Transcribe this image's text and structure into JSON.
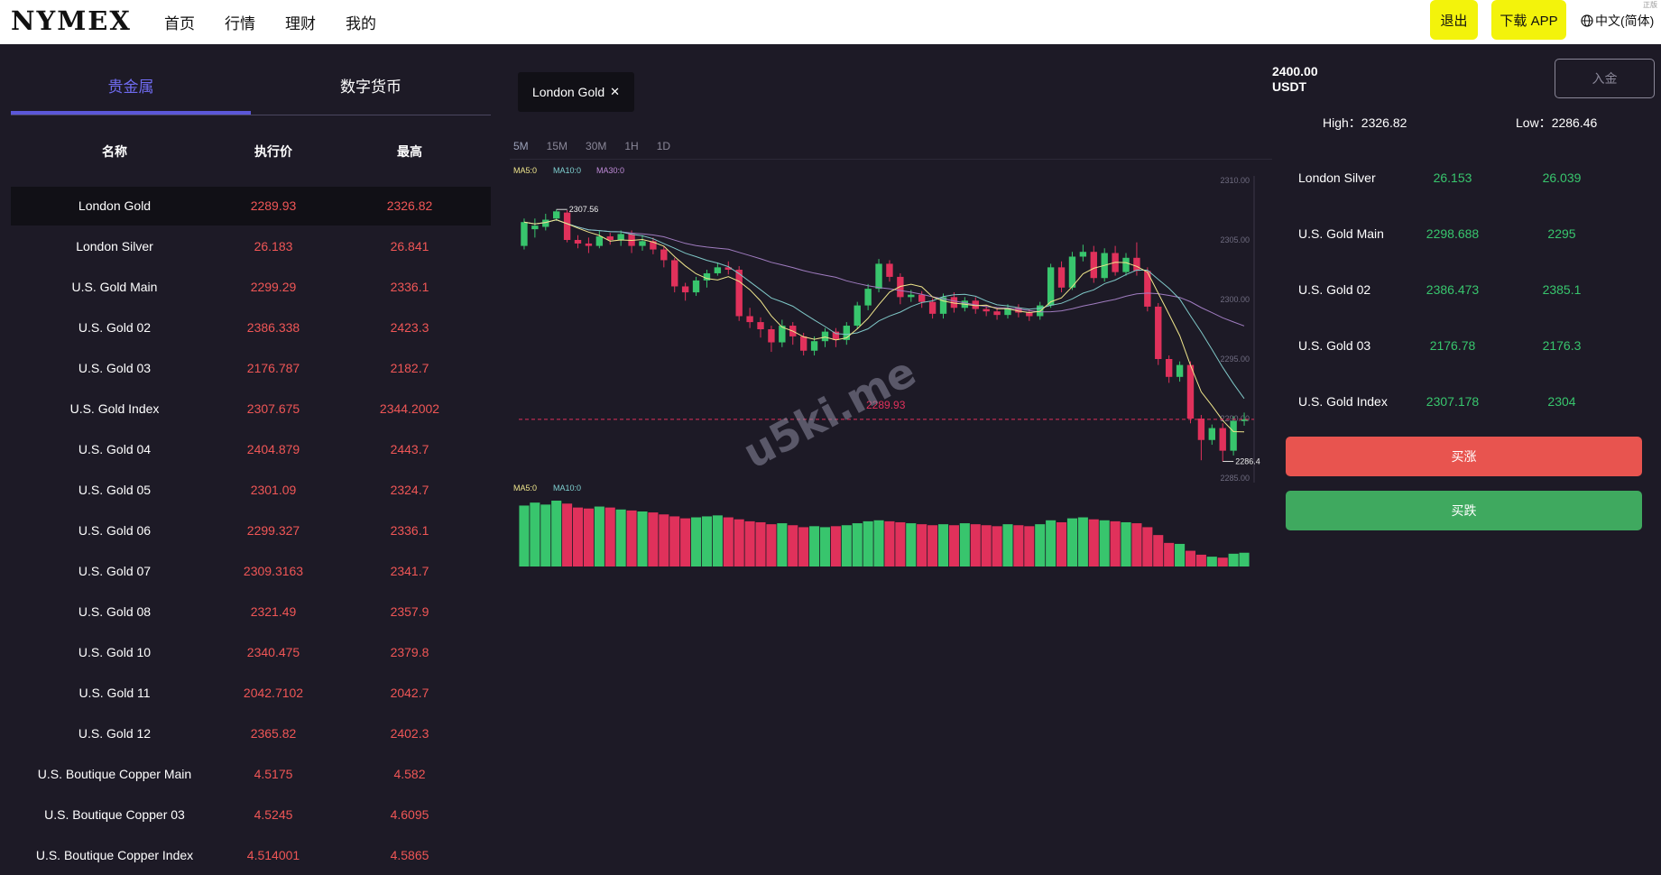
{
  "header": {
    "logo": "NYMEX",
    "nav": [
      "首页",
      "行情",
      "理财",
      "我的"
    ],
    "logout": "退出",
    "download": "下载 APP",
    "language": "中文(简体)",
    "tag": "正版"
  },
  "left": {
    "tabs": [
      "贵金属",
      "数字货币"
    ],
    "columns": [
      "名称",
      "执行价",
      "最高"
    ],
    "rows": [
      {
        "name": "London Gold",
        "price": "2289.93",
        "high": "2326.82"
      },
      {
        "name": "London Silver",
        "price": "26.183",
        "high": "26.841"
      },
      {
        "name": "U.S. Gold Main",
        "price": "2299.29",
        "high": "2336.1"
      },
      {
        "name": "U.S. Gold 02",
        "price": "2386.338",
        "high": "2423.3"
      },
      {
        "name": "U.S. Gold 03",
        "price": "2176.787",
        "high": "2182.7"
      },
      {
        "name": "U.S. Gold Index",
        "price": "2307.675",
        "high": "2344.2002"
      },
      {
        "name": "U.S. Gold 04",
        "price": "2404.879",
        "high": "2443.7"
      },
      {
        "name": "U.S. Gold 05",
        "price": "2301.09",
        "high": "2324.7"
      },
      {
        "name": "U.S. Gold 06",
        "price": "2299.327",
        "high": "2336.1"
      },
      {
        "name": "U.S. Gold 07",
        "price": "2309.3163",
        "high": "2341.7"
      },
      {
        "name": "U.S. Gold 08",
        "price": "2321.49",
        "high": "2357.9"
      },
      {
        "name": "U.S. Gold 10",
        "price": "2340.475",
        "high": "2379.8"
      },
      {
        "name": "U.S. Gold 11",
        "price": "2042.7102",
        "high": "2042.7"
      },
      {
        "name": "U.S. Gold 12",
        "price": "2365.82",
        "high": "2402.3"
      },
      {
        "name": "U.S. Boutique Copper Main",
        "price": "4.5175",
        "high": "4.582"
      },
      {
        "name": "U.S. Boutique Copper 03",
        "price": "4.5245",
        "high": "4.6095"
      },
      {
        "name": "U.S. Boutique Copper Index",
        "price": "4.514001",
        "high": "4.5865"
      }
    ]
  },
  "middle": {
    "symbol_tab": "London Gold",
    "close_glyph": "✕",
    "periods": [
      "5M",
      "15M",
      "30M",
      "1H",
      "1D"
    ],
    "ma_labels": [
      "MA5:0",
      "MA10:0",
      "MA30:0"
    ],
    "vol_ma_labels": [
      "MA5:0",
      "MA10:0"
    ],
    "y_ticks": [
      "2310.00",
      "2305.00",
      "2300.00",
      "2295.00",
      "2290.00",
      "2285.00"
    ],
    "max_label": "2307.56",
    "min_label": "2286.4",
    "current_label": "2289.93",
    "watermark": "u5ki.me"
  },
  "chart_data": {
    "type": "candlestick",
    "ylim": [
      2285,
      2310
    ],
    "y_ticks": [
      2310,
      2305,
      2300,
      2295,
      2290,
      2285
    ],
    "current_price": 2289.93,
    "max": 2307.56,
    "min": 2286.4,
    "candles": [
      [
        2304.5,
        2306.5,
        2306.8,
        2304.2
      ],
      [
        2305.9,
        2306.2,
        2306.8,
        2305.2
      ],
      [
        2306.1,
        2306.7,
        2307.2,
        2305.8
      ],
      [
        2306.8,
        2307.4,
        2307.56,
        2306.6
      ],
      [
        2307.3,
        2305.0,
        2307.5,
        2304.8
      ],
      [
        2305.0,
        2304.7,
        2305.4,
        2304.3
      ],
      [
        2304.7,
        2304.5,
        2305.2,
        2303.9
      ],
      [
        2304.5,
        2305.3,
        2305.8,
        2304.3
      ],
      [
        2305.3,
        2305.0,
        2305.6,
        2304.6
      ],
      [
        2305.0,
        2305.5,
        2305.8,
        2304.5
      ],
      [
        2305.5,
        2304.5,
        2305.8,
        2303.9
      ],
      [
        2304.5,
        2304.9,
        2305.4,
        2304.1
      ],
      [
        2304.9,
        2304.2,
        2305.2,
        2303.8
      ],
      [
        2304.2,
        2303.3,
        2304.5,
        2302.7
      ],
      [
        2303.3,
        2301.1,
        2303.5,
        2300.6
      ],
      [
        2301.1,
        2300.6,
        2301.4,
        2299.9
      ],
      [
        2300.6,
        2301.6,
        2301.9,
        2300.3
      ],
      [
        2301.6,
        2302.2,
        2302.5,
        2301.0
      ],
      [
        2302.2,
        2302.7,
        2303.1,
        2302.0
      ],
      [
        2302.7,
        2302.5,
        2303.2,
        2302.1
      ],
      [
        2302.5,
        2298.6,
        2302.8,
        2298.2
      ],
      [
        2298.6,
        2298.1,
        2299.3,
        2297.6
      ],
      [
        2298.1,
        2297.5,
        2298.5,
        2296.8
      ],
      [
        2297.5,
        2296.4,
        2297.8,
        2295.6
      ],
      [
        2296.4,
        2297.8,
        2298.3,
        2296.0
      ],
      [
        2297.8,
        2296.9,
        2298.1,
        2296.2
      ],
      [
        2296.9,
        2295.7,
        2297.2,
        2295.3
      ],
      [
        2295.7,
        2296.5,
        2296.9,
        2295.3
      ],
      [
        2296.5,
        2297.3,
        2297.6,
        2296.0
      ],
      [
        2297.3,
        2296.6,
        2297.6,
        2296.0
      ],
      [
        2296.6,
        2297.8,
        2298.1,
        2296.2
      ],
      [
        2297.8,
        2299.5,
        2299.8,
        2297.5
      ],
      [
        2299.5,
        2300.9,
        2301.3,
        2299.1
      ],
      [
        2300.9,
        2303.0,
        2303.4,
        2300.6
      ],
      [
        2303.0,
        2301.9,
        2303.3,
        2301.5
      ],
      [
        2301.9,
        2300.2,
        2302.2,
        2299.6
      ],
      [
        2300.2,
        2300.4,
        2300.8,
        2299.8
      ],
      [
        2300.4,
        2299.8,
        2300.7,
        2299.3
      ],
      [
        2299.8,
        2298.8,
        2300.1,
        2298.4
      ],
      [
        2298.8,
        2300.2,
        2300.5,
        2298.4
      ],
      [
        2300.2,
        2299.3,
        2300.6,
        2298.9
      ],
      [
        2299.3,
        2299.9,
        2300.2,
        2299.0
      ],
      [
        2299.9,
        2299.2,
        2300.2,
        2298.8
      ],
      [
        2299.2,
        2299.0,
        2299.5,
        2298.6
      ],
      [
        2299.0,
        2298.7,
        2299.3,
        2298.3
      ],
      [
        2298.7,
        2299.3,
        2299.6,
        2298.4
      ],
      [
        2299.3,
        2298.9,
        2299.6,
        2298.5
      ],
      [
        2298.9,
        2298.6,
        2299.2,
        2298.2
      ],
      [
        2298.6,
        2299.5,
        2299.8,
        2298.3
      ],
      [
        2299.5,
        2302.7,
        2303.0,
        2299.3
      ],
      [
        2302.7,
        2301.0,
        2303.2,
        2300.6
      ],
      [
        2301.0,
        2303.6,
        2304.0,
        2300.8
      ],
      [
        2303.6,
        2304.0,
        2304.6,
        2303.2
      ],
      [
        2304.0,
        2301.8,
        2304.5,
        2301.4
      ],
      [
        2301.8,
        2303.9,
        2304.3,
        2301.5
      ],
      [
        2303.9,
        2302.3,
        2304.5,
        2302.0
      ],
      [
        2302.3,
        2303.5,
        2303.9,
        2302.0
      ],
      [
        2303.5,
        2302.4,
        2304.8,
        2302.0
      ],
      [
        2302.4,
        2299.4,
        2302.7,
        2299.0
      ],
      [
        2299.4,
        2295.0,
        2299.7,
        2294.5
      ],
      [
        2295.0,
        2293.5,
        2295.3,
        2293.0
      ],
      [
        2293.5,
        2294.5,
        2294.8,
        2293.1
      ],
      [
        2294.5,
        2290.0,
        2294.8,
        2289.6
      ],
      [
        2290.0,
        2288.2,
        2290.3,
        2286.5
      ],
      [
        2288.2,
        2289.2,
        2289.5,
        2287.8
      ],
      [
        2289.2,
        2287.3,
        2289.6,
        2286.4
      ],
      [
        2287.3,
        2289.8,
        2290.2,
        2286.9
      ],
      [
        2289.8,
        2289.93,
        2290.5,
        2289.4
      ]
    ],
    "volumes": [
      62,
      65,
      63,
      67,
      64,
      60,
      59,
      61,
      60,
      58,
      57,
      56,
      55,
      53,
      51,
      49,
      50,
      51,
      52,
      50,
      48,
      46,
      45,
      43,
      44,
      42,
      40,
      41,
      40,
      41,
      42,
      44,
      46,
      47,
      46,
      45,
      44,
      43,
      42,
      43,
      42,
      44,
      43,
      42,
      41,
      43,
      42,
      41,
      43,
      47,
      45,
      49,
      50,
      48,
      47,
      46,
      45,
      44,
      40,
      32,
      24,
      23,
      16,
      12,
      10,
      9,
      13,
      14
    ]
  },
  "right": {
    "balance_value": "2400.00",
    "balance_unit": "USDT",
    "deposit": "入金",
    "high_label": "High：",
    "high_value": "2326.82",
    "low_label": "Low：",
    "low_value": "2286.46",
    "rows": [
      {
        "name": "London Silver",
        "a": "26.153",
        "b": "26.039"
      },
      {
        "name": "U.S. Gold Main",
        "a": "2298.688",
        "b": "2295"
      },
      {
        "name": "U.S. Gold 02",
        "a": "2386.473",
        "b": "2385.1"
      },
      {
        "name": "U.S. Gold 03",
        "a": "2176.78",
        "b": "2176.3"
      },
      {
        "name": "U.S. Gold Index",
        "a": "2307.178",
        "b": "2304"
      }
    ],
    "buy_up": "买涨",
    "buy_down": "买跌"
  },
  "colors": {
    "up": "#38c56d",
    "down": "#e0315b",
    "accent": "#5b57d8",
    "yellow": "#f3f30b"
  }
}
